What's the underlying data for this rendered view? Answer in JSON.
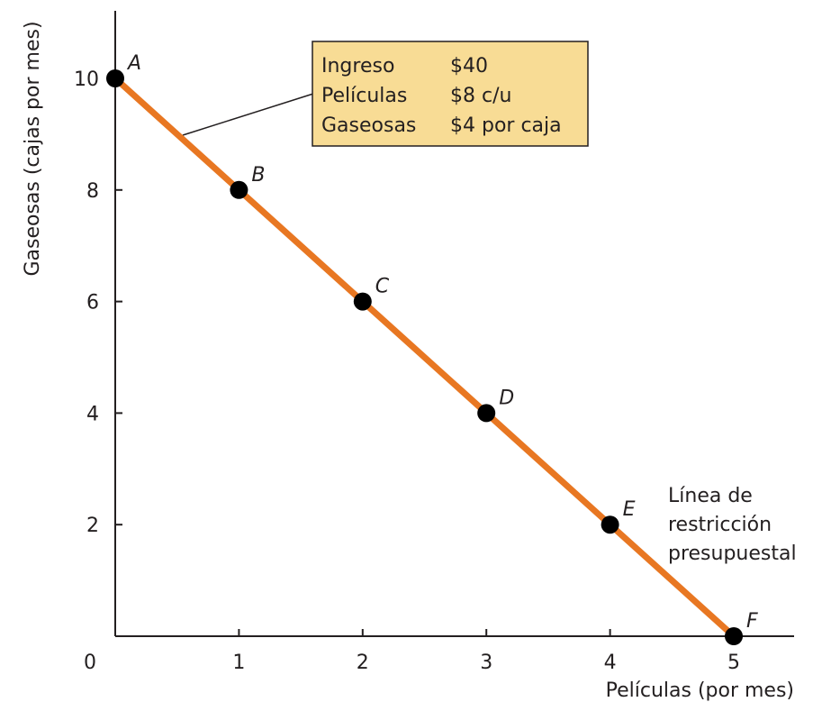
{
  "chart_data": {
    "type": "line",
    "xlabel": "Películas (por mes)",
    "ylabel": "Gaseosas (cajas por mes)",
    "origin_label": "0",
    "x_ticks": [
      "1",
      "2",
      "3",
      "4",
      "5"
    ],
    "y_ticks": [
      "2",
      "4",
      "6",
      "8",
      "10"
    ],
    "xlim": [
      0,
      5.5
    ],
    "ylim": [
      0,
      11
    ],
    "grid": false,
    "line_color": "#e87722",
    "series": [
      {
        "points": [
          {
            "label": "A",
            "x": 0,
            "y": 10
          },
          {
            "label": "B",
            "x": 1,
            "y": 8
          },
          {
            "label": "C",
            "x": 2,
            "y": 6
          },
          {
            "label": "D",
            "x": 3,
            "y": 4
          },
          {
            "label": "E",
            "x": 4,
            "y": 2
          },
          {
            "label": "F",
            "x": 5,
            "y": 0
          }
        ]
      }
    ],
    "legend_box": {
      "background": "#f8dc95",
      "rows": [
        {
          "name": "Ingreso",
          "value": "$40"
        },
        {
          "name": "Películas",
          "value": "$8 c/u"
        },
        {
          "name": "Gaseosas",
          "value": "$4 por caja"
        }
      ]
    },
    "annotation": {
      "lines": [
        "Línea de",
        "restricción",
        "presupuestal"
      ]
    }
  }
}
